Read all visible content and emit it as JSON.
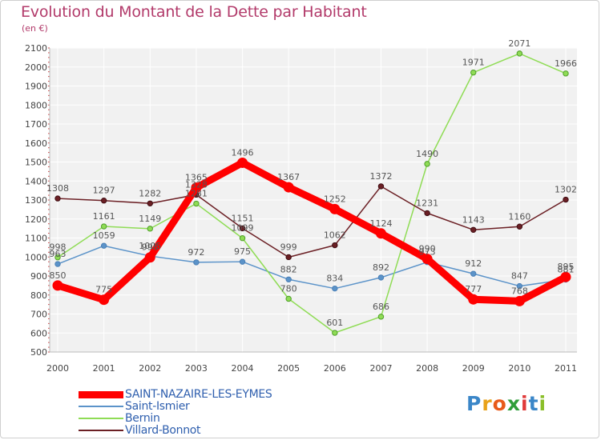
{
  "header": {
    "title": "Evolution du Montant de la Dette par Habitant",
    "unit": "(en €)"
  },
  "chart_data": {
    "type": "line",
    "title": "Evolution du Montant de la Dette par Habitant",
    "subtitle": "(en €)",
    "x": [
      "2000",
      "2001",
      "2002",
      "2003",
      "2004",
      "2005",
      "2006",
      "2007",
      "2008",
      "2009",
      "2010",
      "2011"
    ],
    "ylim": [
      500,
      2100
    ],
    "yticks": [
      500,
      600,
      700,
      800,
      900,
      1000,
      1100,
      1200,
      1300,
      1400,
      1500,
      1600,
      1700,
      1800,
      1900,
      2000,
      2100
    ],
    "grid": true,
    "legend_position": "bottom-left",
    "series": [
      {
        "name": "SAINT-NAZAIRE-LES-EYMES",
        "color": "#ff0000",
        "values": [
          850,
          775,
          998,
          1365,
          1496,
          1367,
          1252,
          1124,
          990,
          777,
          768,
          895
        ]
      },
      {
        "name": "Saint-Ismier",
        "color": "#5b93c9",
        "values": [
          963,
          1059,
          1005,
          972,
          975,
          882,
          834,
          892,
          973,
          912,
          847,
          881
        ]
      },
      {
        "name": "Bernin",
        "color": "#8fdc55",
        "values": [
          998,
          1161,
          1149,
          1281,
          1099,
          780,
          601,
          686,
          1490,
          1971,
          2071,
          1966
        ]
      },
      {
        "name": "Villard-Bonnot",
        "color": "#6b1f24",
        "values": [
          1308,
          1297,
          1282,
          1328,
          1151,
          999,
          1062,
          1372,
          1231,
          1143,
          1160,
          1302
        ]
      }
    ],
    "data_labels": [
      {
        "series": "SAINT-NAZAIRE-LES-EYMES",
        "labels": [
          "850",
          "775",
          "998",
          "1365",
          "1496",
          "1367",
          "1252",
          "1124",
          "990",
          "777",
          "768",
          "895"
        ]
      },
      {
        "series": "Saint-Ismier",
        "labels": [
          "963",
          "1059",
          "1005",
          "972",
          "975",
          "882",
          "834",
          "892",
          "973",
          "912",
          "847",
          "881"
        ]
      },
      {
        "series": "Bernin",
        "labels": [
          "998",
          "1161",
          "1149",
          "1281",
          "1099",
          "780",
          "601",
          "686",
          "1490",
          "1971",
          "2071",
          "1966"
        ]
      },
      {
        "series": "Villard-Bonnot",
        "labels": [
          "1308",
          "1297",
          "1282",
          "1328",
          "1151",
          "999",
          "1062",
          "1372",
          "1231",
          "1143",
          "1160",
          "1302"
        ]
      }
    ]
  },
  "legend": {
    "items": [
      {
        "label": "SAINT-NAZAIRE-LES-EYMES",
        "color": "#ff0000"
      },
      {
        "label": "Saint-Ismier",
        "color": "#5b93c9"
      },
      {
        "label": "Bernin",
        "color": "#8fdc55"
      },
      {
        "label": "Villard-Bonnot",
        "color": "#6b1f24"
      }
    ]
  },
  "logo": {
    "text": "Proxiti",
    "letters": [
      "P",
      "r",
      "o",
      "x",
      "i",
      "t",
      "i"
    ],
    "colors": [
      "#3a86c8",
      "#e8a21a",
      "#e85a1a",
      "#2f9e3a",
      "#e03a3a",
      "#3a86c8",
      "#8bbf2a"
    ]
  }
}
